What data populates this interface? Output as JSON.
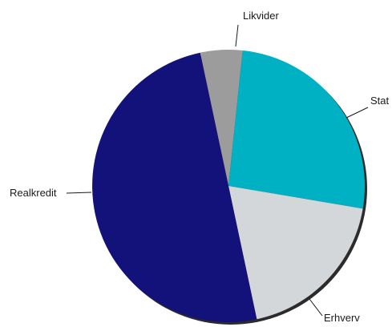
{
  "chart_data": {
    "type": "pie",
    "title": "",
    "slices": [
      {
        "label": "Likvider",
        "value": 5,
        "color": "#9c9c9c"
      },
      {
        "label": "Stat",
        "value": 26,
        "color": "#00b1c4"
      },
      {
        "label": "Erhverv",
        "value": 19,
        "color": "#d4d7da"
      },
      {
        "label": "Realkredit",
        "value": 50,
        "color": "#12127a"
      }
    ],
    "start_angle_deg": -12,
    "direction": "clockwise",
    "legend": "none",
    "labels": "outside-with-leader-lines"
  }
}
